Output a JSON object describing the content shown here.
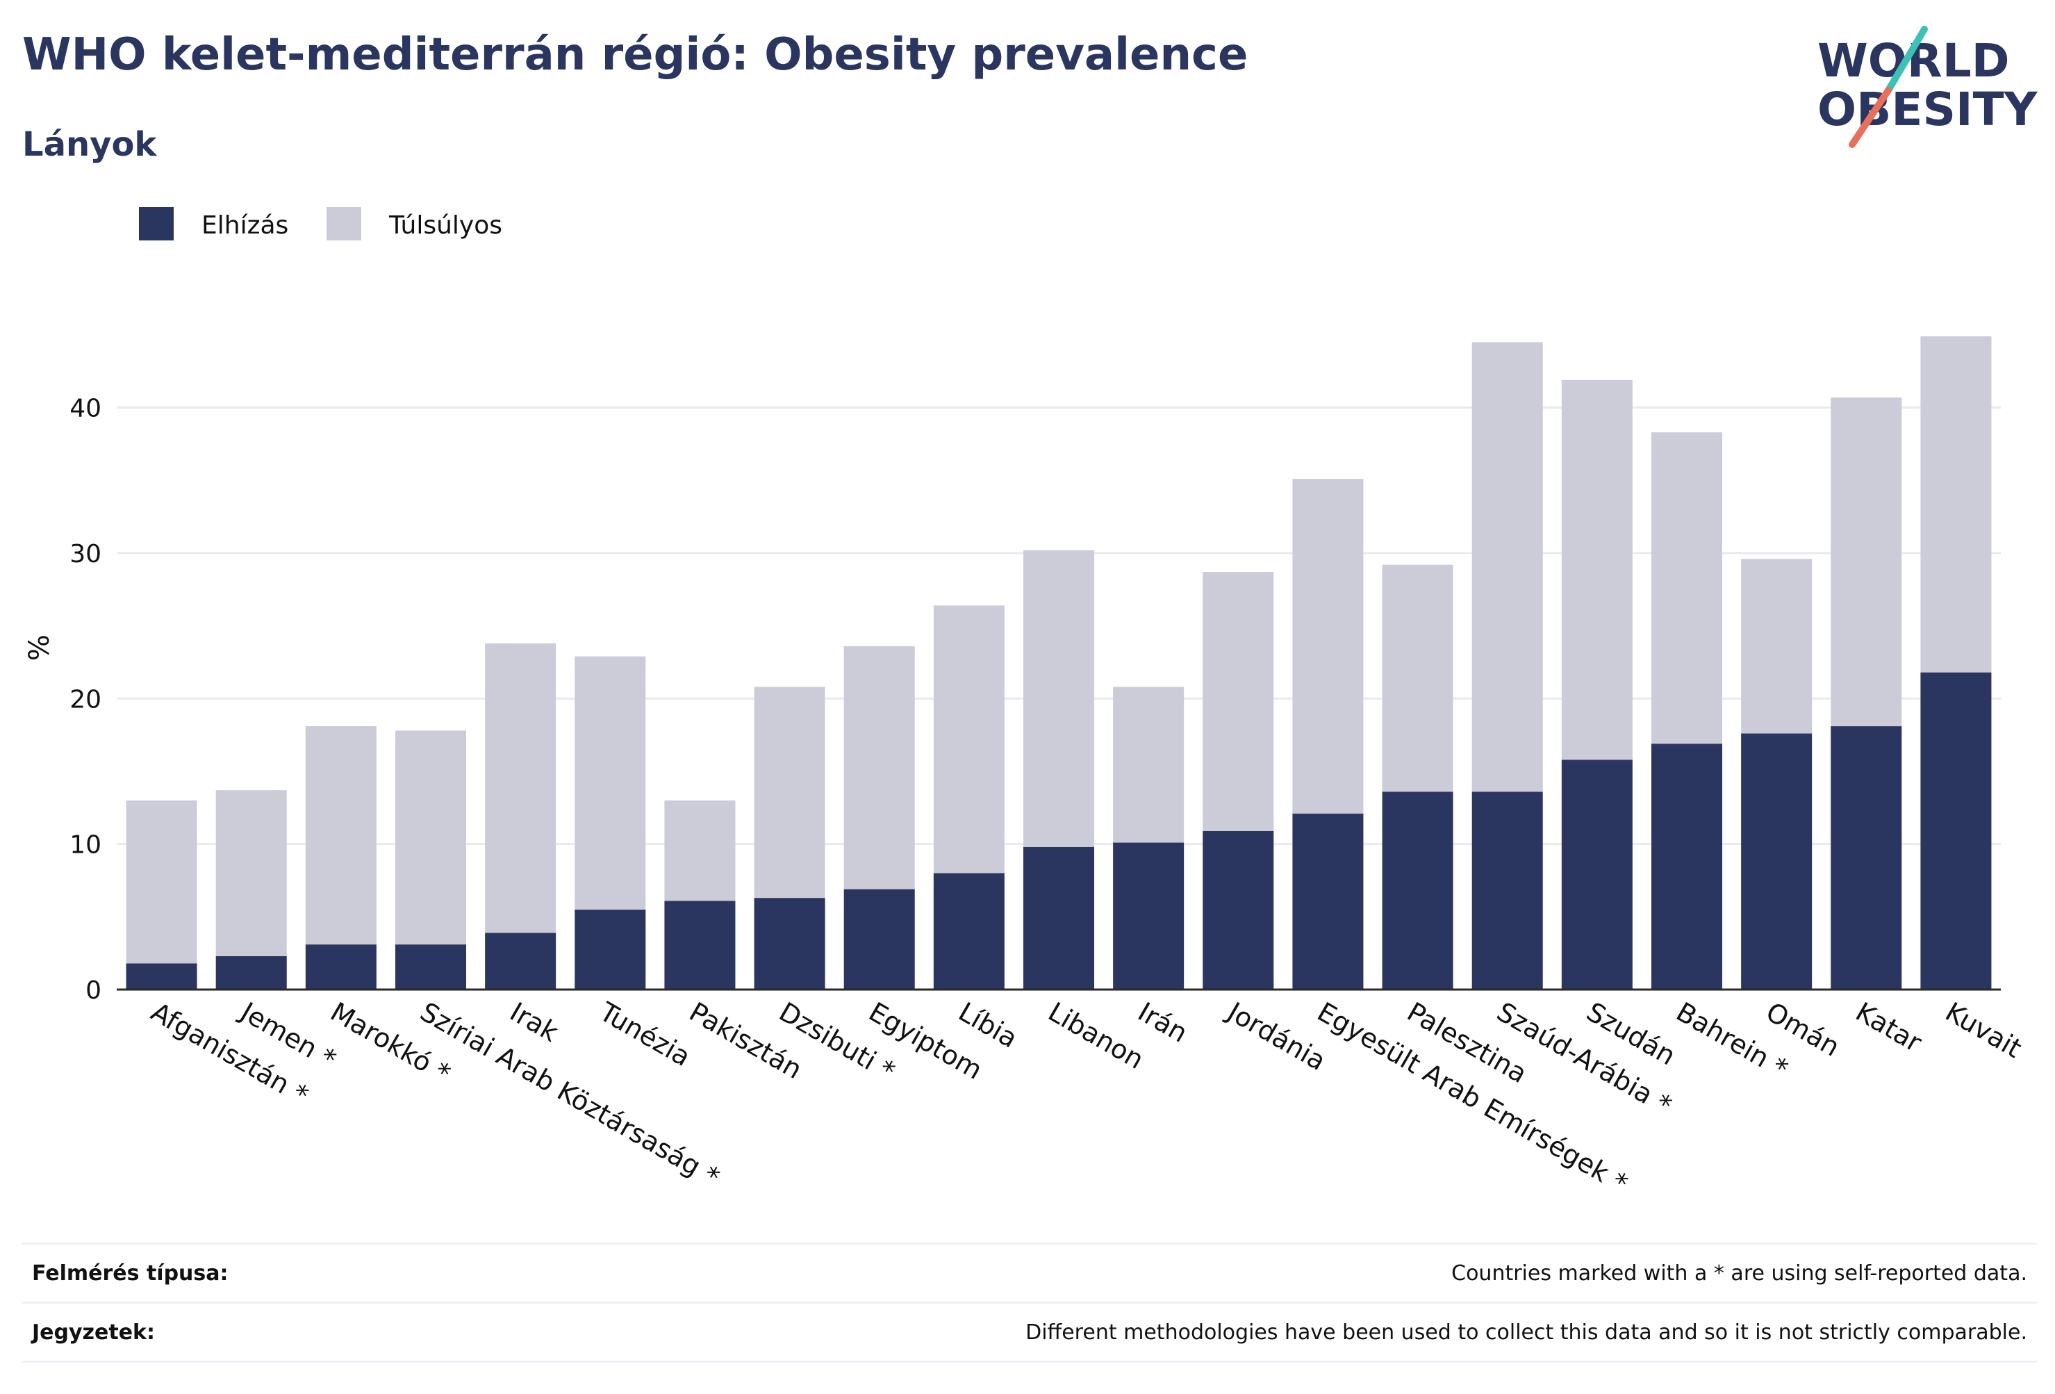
{
  "header": {
    "title": "WHO kelet-mediterrán régió: Obesity prevalence",
    "subtitle": "Lányok"
  },
  "logo": {
    "line1": "WORLD",
    "line2": "OBESITY",
    "colors": {
      "text": "#2a365f",
      "slash_top": "#3cc1b7",
      "slash_bottom": "#e8705b"
    }
  },
  "footer": {
    "survey_label": "Felmérés típusa:",
    "survey_value": "Countries marked with a * are using self-reported data.",
    "notes_label": "Jegyzetek:",
    "notes_value": "Different methodologies have been used to collect this data and so it is not strictly comparable."
  },
  "chart_data": {
    "type": "bar",
    "stacked": true,
    "title": "WHO kelet-mediterrán régió: Obesity prevalence",
    "subtitle": "Lányok",
    "xlabel": "",
    "ylabel": "%",
    "ylim": [
      0,
      47
    ],
    "yticks": [
      0,
      10,
      20,
      30,
      40
    ],
    "grid": true,
    "legend_position": "top-left",
    "categories": [
      "Afganisztán *",
      "Jemen *",
      "Marokkó *",
      "Szíriai Arab Köztársaság *",
      "Irak",
      "Tunézia",
      "Pakisztán",
      "Dzsibuti *",
      "Egyiptom",
      "Líbia",
      "Libanon",
      "Irán",
      "Jordánia",
      "Egyesült Arab Emírségek *",
      "Palesztina",
      "Szaúd-Arábia *",
      "Szudán",
      "Bahrein *",
      "Omán",
      "Katar",
      "Kuvait"
    ],
    "series": [
      {
        "name": "Elhízás",
        "color": "#2a365f",
        "values": [
          1.8,
          2.3,
          3.1,
          3.1,
          3.9,
          5.5,
          6.1,
          6.3,
          6.9,
          8.0,
          9.8,
          10.1,
          10.9,
          12.1,
          13.6,
          13.6,
          15.8,
          16.9,
          17.6,
          18.1,
          21.8
        ]
      },
      {
        "name": "Túlsúlyos",
        "color": "#cbccd8",
        "values": [
          11.2,
          11.4,
          15.0,
          14.7,
          19.9,
          17.4,
          6.9,
          14.5,
          16.7,
          18.4,
          20.4,
          10.7,
          17.8,
          23.0,
          15.6,
          30.9,
          26.1,
          21.4,
          12.0,
          22.6,
          23.1
        ]
      }
    ],
    "totals": [
      13.0,
      13.7,
      18.1,
      17.8,
      23.8,
      22.9,
      13.0,
      20.8,
      23.6,
      26.4,
      30.2,
      20.8,
      28.7,
      35.1,
      29.2,
      44.5,
      41.9,
      38.3,
      29.6,
      40.7,
      44.9
    ]
  }
}
